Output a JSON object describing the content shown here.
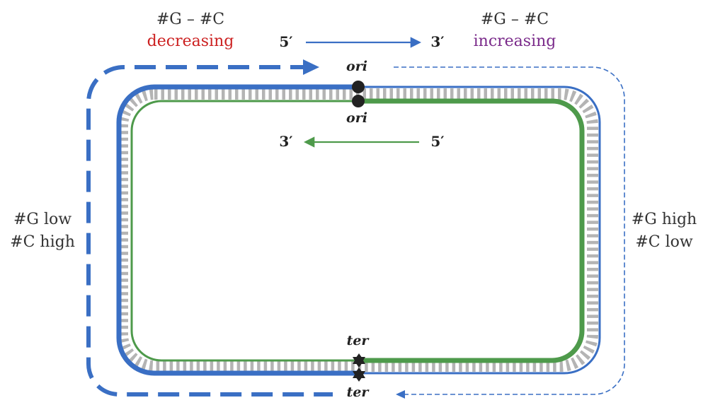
{
  "labels": {
    "top_left_line1": "#G – #C",
    "top_left_line2": "decreasing",
    "top_right_line1": "#G – #C",
    "top_right_line2": "increasing",
    "left_line1": "#G low",
    "left_line2": "#C high",
    "right_line1": "#G high",
    "right_line2": "#C low",
    "top_arrow_start": "5′",
    "top_arrow_end": "3′",
    "inner_arrow_start": "5′",
    "inner_arrow_end": "3′",
    "ori_outer": "ori",
    "ori_inner": "ori",
    "ter_outer": "ter",
    "ter_inner": "ter"
  },
  "colors": {
    "leading_blue": "#3a6fc4",
    "lagging_green": "#4e9a4b",
    "base_pairs": "#b4b4b4",
    "decreasing_text": "#cc2020",
    "increasing_text": "#7a2a8a",
    "marker": "#222222",
    "text": "#333333"
  }
}
